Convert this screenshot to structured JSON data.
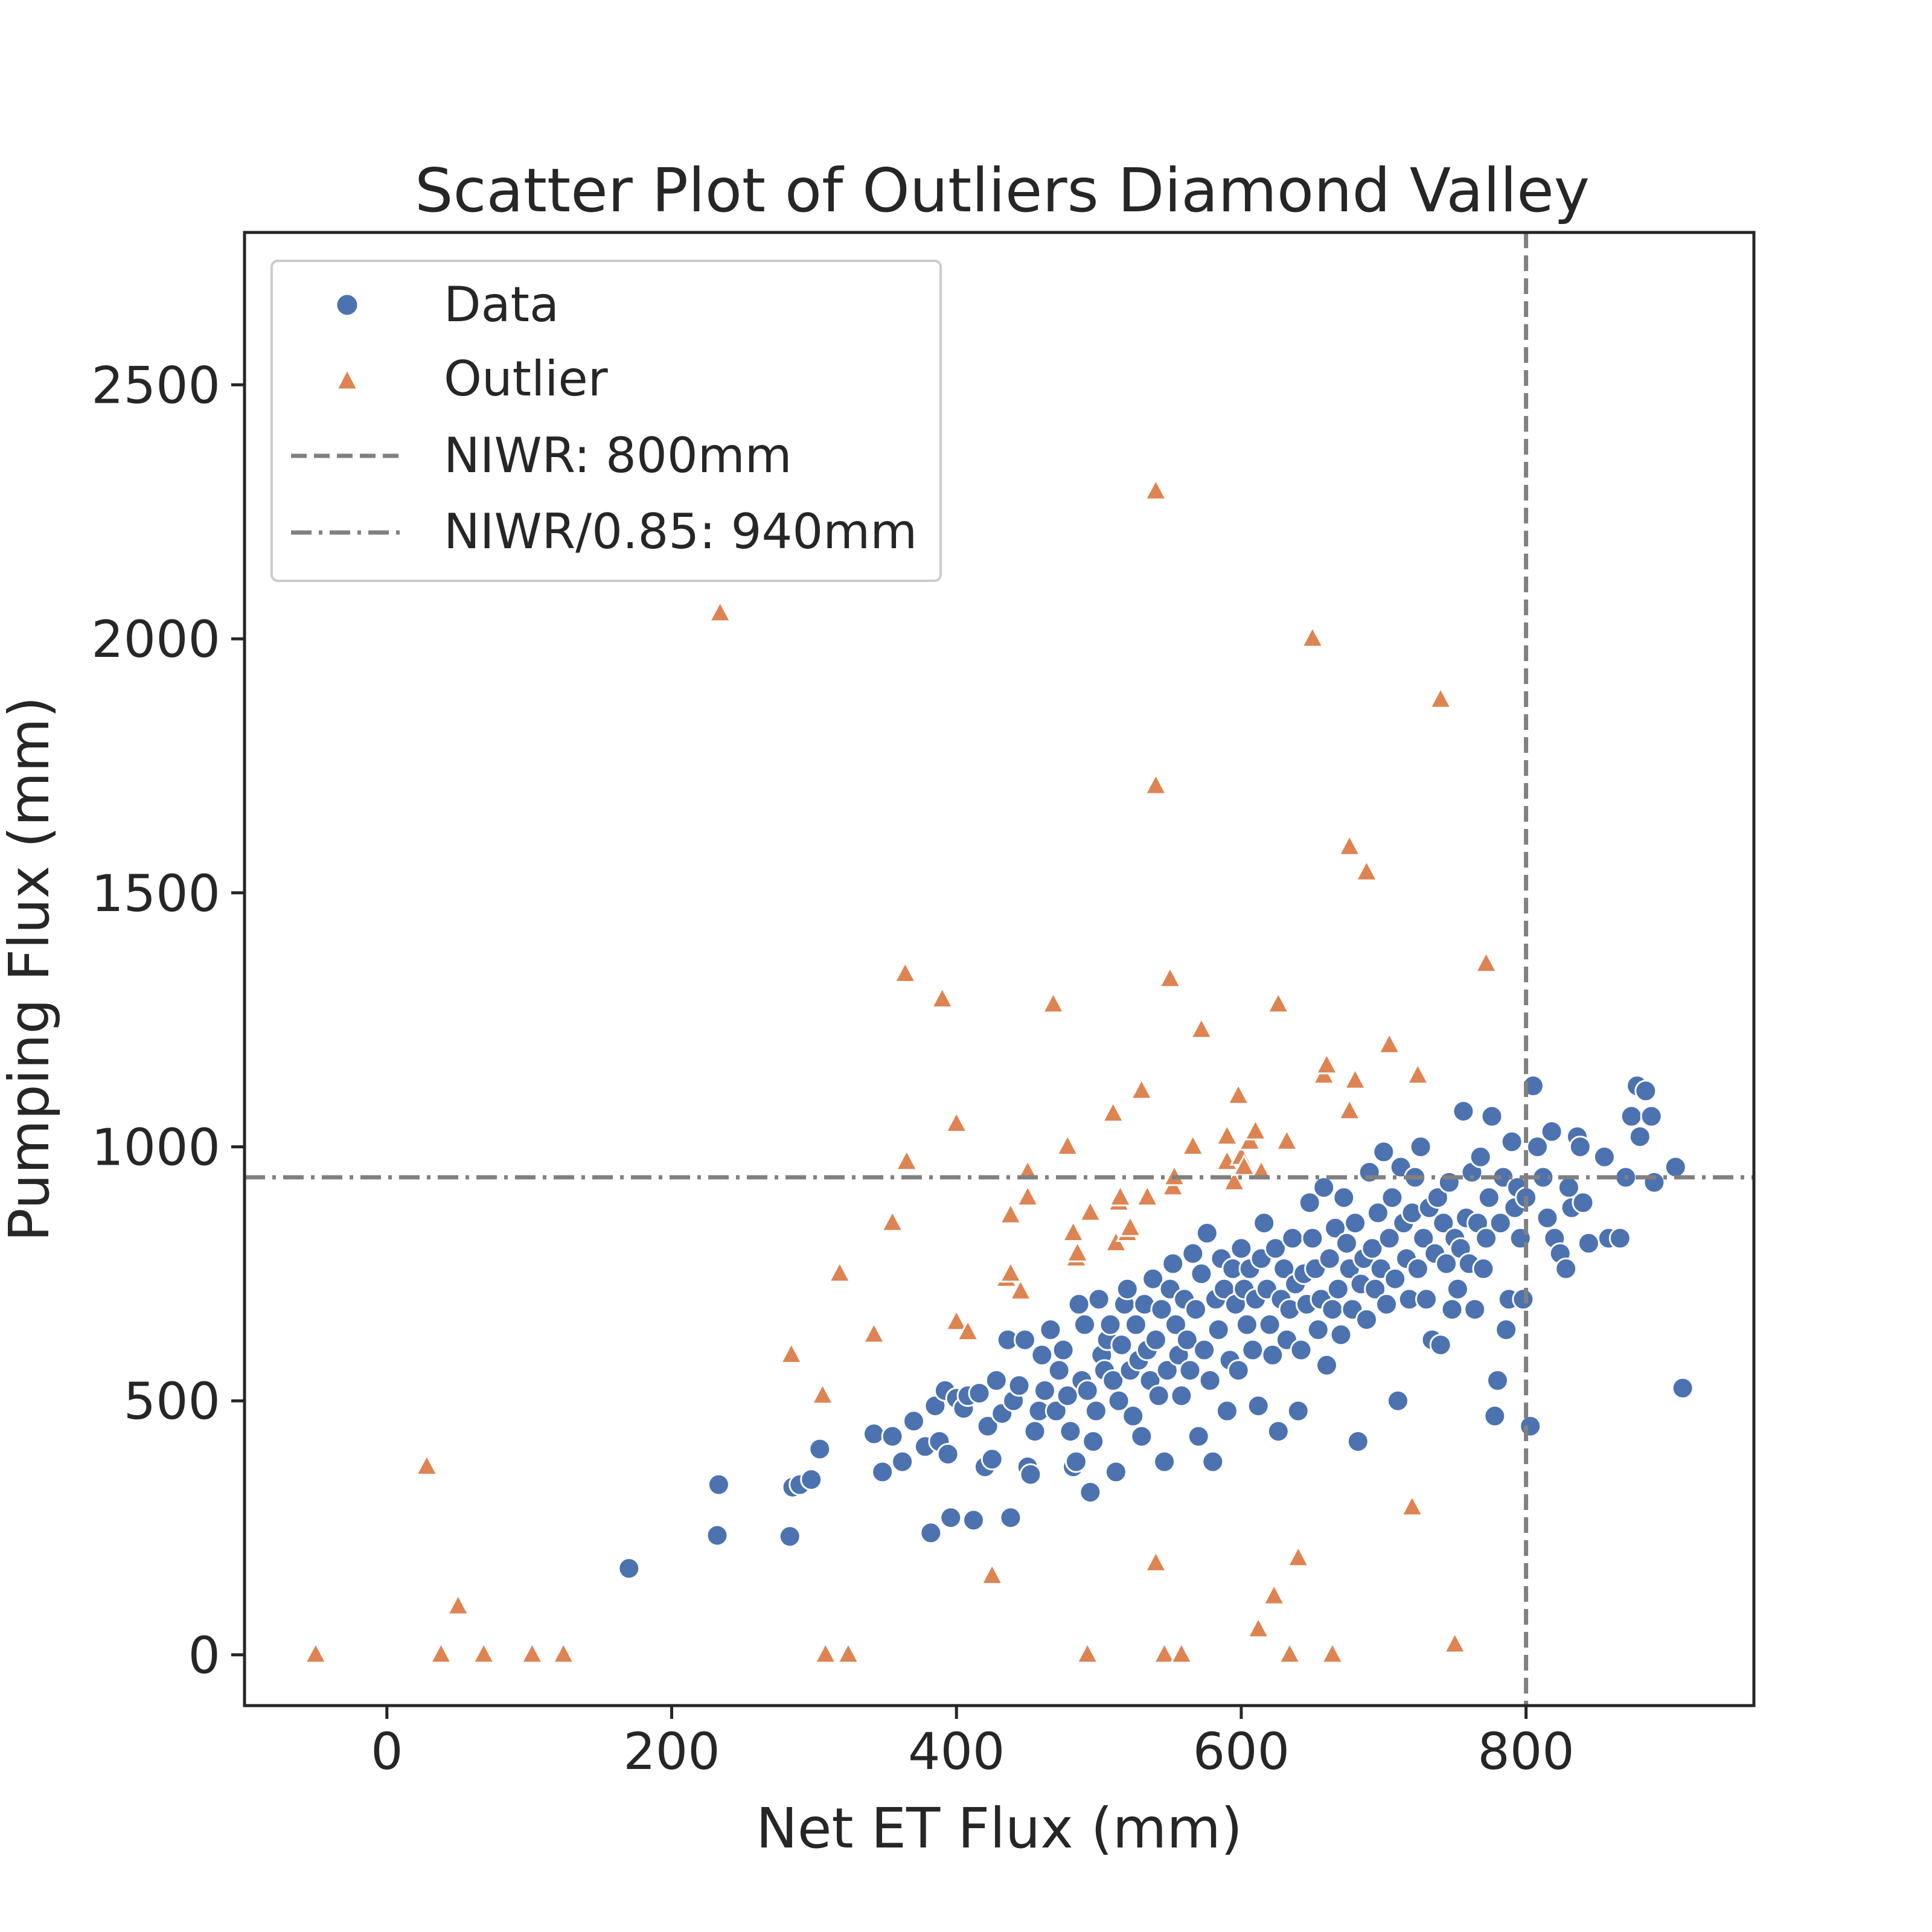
{
  "chart_data": {
    "type": "scatter",
    "title": "Scatter Plot of Outliers Diamond Valley",
    "xlabel": "Net ET Flux (mm)",
    "ylabel": "Pumping Flux (mm)",
    "xlim": [
      -100,
      960
    ],
    "ylim": [
      -100,
      2800
    ],
    "xticks": [
      0,
      200,
      400,
      600,
      800
    ],
    "yticks": [
      0,
      500,
      1000,
      1500,
      2000,
      2500
    ],
    "grid": false,
    "legend_position": "top-left",
    "series": [
      {
        "name": "Data",
        "marker": "circle",
        "color": "#4c72b0",
        "points": [
          [
            170,
            170
          ],
          [
            232,
            235
          ],
          [
            233,
            335
          ],
          [
            283,
            233
          ],
          [
            285,
            330
          ],
          [
            290,
            335
          ],
          [
            298,
            345
          ],
          [
            304,
            405
          ],
          [
            342,
            435
          ],
          [
            348,
            360
          ],
          [
            355,
            430
          ],
          [
            362,
            380
          ],
          [
            370,
            460
          ],
          [
            378,
            410
          ],
          [
            382,
            240
          ],
          [
            385,
            490
          ],
          [
            388,
            420
          ],
          [
            392,
            520
          ],
          [
            394,
            395
          ],
          [
            396,
            270
          ],
          [
            400,
            505
          ],
          [
            405,
            485
          ],
          [
            408,
            510
          ],
          [
            412,
            265
          ],
          [
            416,
            515
          ],
          [
            420,
            370
          ],
          [
            422,
            450
          ],
          [
            425,
            385
          ],
          [
            428,
            540
          ],
          [
            432,
            475
          ],
          [
            436,
            620
          ],
          [
            438,
            270
          ],
          [
            440,
            500
          ],
          [
            444,
            530
          ],
          [
            448,
            620
          ],
          [
            450,
            370
          ],
          [
            452,
            355
          ],
          [
            455,
            440
          ],
          [
            458,
            480
          ],
          [
            460,
            590
          ],
          [
            462,
            520
          ],
          [
            466,
            640
          ],
          [
            470,
            480
          ],
          [
            472,
            560
          ],
          [
            475,
            600
          ],
          [
            478,
            510
          ],
          [
            480,
            440
          ],
          [
            482,
            370
          ],
          [
            484,
            380
          ],
          [
            486,
            690
          ],
          [
            488,
            540
          ],
          [
            490,
            650
          ],
          [
            492,
            520
          ],
          [
            494,
            320
          ],
          [
            496,
            420
          ],
          [
            498,
            480
          ],
          [
            500,
            700
          ],
          [
            502,
            590
          ],
          [
            504,
            560
          ],
          [
            506,
            620
          ],
          [
            508,
            650
          ],
          [
            510,
            540
          ],
          [
            512,
            360
          ],
          [
            514,
            500
          ],
          [
            516,
            610
          ],
          [
            518,
            690
          ],
          [
            520,
            720
          ],
          [
            522,
            560
          ],
          [
            524,
            470
          ],
          [
            526,
            650
          ],
          [
            528,
            580
          ],
          [
            530,
            430
          ],
          [
            532,
            690
          ],
          [
            534,
            600
          ],
          [
            536,
            540
          ],
          [
            538,
            740
          ],
          [
            540,
            620
          ],
          [
            542,
            510
          ],
          [
            544,
            680
          ],
          [
            546,
            380
          ],
          [
            548,
            560
          ],
          [
            550,
            720
          ],
          [
            552,
            770
          ],
          [
            554,
            650
          ],
          [
            556,
            590
          ],
          [
            558,
            510
          ],
          [
            560,
            700
          ],
          [
            562,
            620
          ],
          [
            564,
            560
          ],
          [
            566,
            790
          ],
          [
            568,
            680
          ],
          [
            570,
            430
          ],
          [
            572,
            750
          ],
          [
            574,
            600
          ],
          [
            576,
            830
          ],
          [
            578,
            540
          ],
          [
            580,
            380
          ],
          [
            582,
            700
          ],
          [
            584,
            640
          ],
          [
            586,
            780
          ],
          [
            588,
            720
          ],
          [
            590,
            480
          ],
          [
            592,
            580
          ],
          [
            594,
            760
          ],
          [
            596,
            690
          ],
          [
            598,
            560
          ],
          [
            600,
            800
          ],
          [
            602,
            720
          ],
          [
            604,
            650
          ],
          [
            606,
            760
          ],
          [
            608,
            600
          ],
          [
            610,
            700
          ],
          [
            612,
            490
          ],
          [
            614,
            780
          ],
          [
            616,
            850
          ],
          [
            618,
            720
          ],
          [
            620,
            650
          ],
          [
            622,
            590
          ],
          [
            624,
            800
          ],
          [
            626,
            440
          ],
          [
            628,
            700
          ],
          [
            630,
            760
          ],
          [
            632,
            620
          ],
          [
            634,
            680
          ],
          [
            636,
            820
          ],
          [
            638,
            730
          ],
          [
            640,
            480
          ],
          [
            642,
            600
          ],
          [
            644,
            750
          ],
          [
            646,
            690
          ],
          [
            648,
            890
          ],
          [
            650,
            820
          ],
          [
            652,
            760
          ],
          [
            654,
            640
          ],
          [
            656,
            700
          ],
          [
            658,
            920
          ],
          [
            660,
            570
          ],
          [
            662,
            780
          ],
          [
            664,
            680
          ],
          [
            666,
            840
          ],
          [
            668,
            720
          ],
          [
            670,
            630
          ],
          [
            672,
            900
          ],
          [
            674,
            810
          ],
          [
            676,
            760
          ],
          [
            678,
            680
          ],
          [
            680,
            850
          ],
          [
            682,
            420
          ],
          [
            684,
            730
          ],
          [
            686,
            780
          ],
          [
            688,
            660
          ],
          [
            690,
            950
          ],
          [
            692,
            800
          ],
          [
            694,
            720
          ],
          [
            696,
            870
          ],
          [
            698,
            760
          ],
          [
            700,
            990
          ],
          [
            702,
            690
          ],
          [
            704,
            820
          ],
          [
            706,
            900
          ],
          [
            708,
            740
          ],
          [
            710,
            500
          ],
          [
            712,
            960
          ],
          [
            714,
            850
          ],
          [
            716,
            780
          ],
          [
            718,
            700
          ],
          [
            720,
            870
          ],
          [
            722,
            940
          ],
          [
            724,
            760
          ],
          [
            726,
            1000
          ],
          [
            728,
            820
          ],
          [
            730,
            700
          ],
          [
            732,
            880
          ],
          [
            734,
            620
          ],
          [
            736,
            790
          ],
          [
            738,
            900
          ],
          [
            740,
            610
          ],
          [
            742,
            850
          ],
          [
            744,
            770
          ],
          [
            746,
            930
          ],
          [
            748,
            680
          ],
          [
            750,
            820
          ],
          [
            752,
            720
          ],
          [
            754,
            800
          ],
          [
            756,
            1070
          ],
          [
            758,
            860
          ],
          [
            760,
            770
          ],
          [
            762,
            950
          ],
          [
            764,
            680
          ],
          [
            766,
            850
          ],
          [
            768,
            980
          ],
          [
            770,
            760
          ],
          [
            772,
            820
          ],
          [
            774,
            900
          ],
          [
            776,
            1060
          ],
          [
            778,
            470
          ],
          [
            780,
            540
          ],
          [
            782,
            850
          ],
          [
            784,
            940
          ],
          [
            786,
            640
          ],
          [
            788,
            700
          ],
          [
            790,
            1010
          ],
          [
            792,
            880
          ],
          [
            794,
            920
          ],
          [
            796,
            820
          ],
          [
            798,
            700
          ],
          [
            800,
            900
          ],
          [
            805,
            1120
          ],
          [
            808,
            1000
          ],
          [
            812,
            940
          ],
          [
            815,
            860
          ],
          [
            818,
            1030
          ],
          [
            820,
            820
          ],
          [
            824,
            790
          ],
          [
            828,
            760
          ],
          [
            830,
            920
          ],
          [
            832,
            880
          ],
          [
            836,
            1020
          ],
          [
            838,
            1000
          ],
          [
            840,
            890
          ],
          [
            844,
            810
          ],
          [
            855,
            980
          ],
          [
            858,
            820
          ],
          [
            866,
            820
          ],
          [
            870,
            940
          ],
          [
            874,
            1060
          ],
          [
            878,
            1120
          ],
          [
            880,
            1020
          ],
          [
            884,
            1110
          ],
          [
            888,
            1060
          ],
          [
            890,
            930
          ],
          [
            905,
            960
          ],
          [
            910,
            525
          ],
          [
            803,
            450
          ]
        ]
      },
      {
        "name": "Outlier",
        "marker": "triangle",
        "color": "#dd8452",
        "points": [
          [
            -50,
            0
          ],
          [
            28,
            370
          ],
          [
            38,
            0
          ],
          [
            50,
            95
          ],
          [
            68,
            0
          ],
          [
            102,
            0
          ],
          [
            124,
            0
          ],
          [
            234,
            2050
          ],
          [
            284,
            590
          ],
          [
            306,
            510
          ],
          [
            308,
            0
          ],
          [
            318,
            750
          ],
          [
            324,
            0
          ],
          [
            342,
            630
          ],
          [
            355,
            850
          ],
          [
            364,
            1340
          ],
          [
            365,
            970
          ],
          [
            390,
            1290
          ],
          [
            400,
            1045
          ],
          [
            400,
            655
          ],
          [
            408,
            635
          ],
          [
            425,
            155
          ],
          [
            435,
            740
          ],
          [
            438,
            865
          ],
          [
            438,
            750
          ],
          [
            445,
            715
          ],
          [
            450,
            950
          ],
          [
            450,
            900
          ],
          [
            468,
            1280
          ],
          [
            478,
            1000
          ],
          [
            482,
            830
          ],
          [
            484,
            780
          ],
          [
            485,
            790
          ],
          [
            492,
            0
          ],
          [
            494,
            870
          ],
          [
            510,
            1065
          ],
          [
            512,
            810
          ],
          [
            514,
            890
          ],
          [
            515,
            900
          ],
          [
            520,
            830
          ],
          [
            522,
            840
          ],
          [
            530,
            1110
          ],
          [
            534,
            900
          ],
          [
            540,
            1710
          ],
          [
            540,
            2290
          ],
          [
            540,
            180
          ],
          [
            546,
            0
          ],
          [
            550,
            1330
          ],
          [
            552,
            920
          ],
          [
            553,
            940
          ],
          [
            558,
            0
          ],
          [
            566,
            1000
          ],
          [
            572,
            1230
          ],
          [
            590,
            970
          ],
          [
            590,
            1020
          ],
          [
            595,
            930
          ],
          [
            598,
            1100
          ],
          [
            600,
            980
          ],
          [
            602,
            960
          ],
          [
            606,
            1010
          ],
          [
            610,
            1030
          ],
          [
            612,
            50
          ],
          [
            614,
            950
          ],
          [
            623,
            115
          ],
          [
            626,
            1280
          ],
          [
            632,
            1010
          ],
          [
            634,
            0
          ],
          [
            640,
            190
          ],
          [
            650,
            2000
          ],
          [
            658,
            1140
          ],
          [
            660,
            1160
          ],
          [
            664,
            0
          ],
          [
            676,
            1070
          ],
          [
            676,
            1590
          ],
          [
            680,
            1130
          ],
          [
            688,
            1540
          ],
          [
            704,
            1200
          ],
          [
            720,
            290
          ],
          [
            724,
            1140
          ],
          [
            740,
            1880
          ],
          [
            750,
            20
          ],
          [
            772,
            1360
          ]
        ]
      }
    ],
    "reference_lines": [
      {
        "name": "NIWR: 800mm",
        "orientation": "vertical",
        "value": 800,
        "style": "dashed",
        "color": "#808080"
      },
      {
        "name": "NIWR/0.85: 940mm",
        "orientation": "horizontal",
        "value": 940,
        "style": "dashdot",
        "color": "#808080"
      }
    ]
  }
}
